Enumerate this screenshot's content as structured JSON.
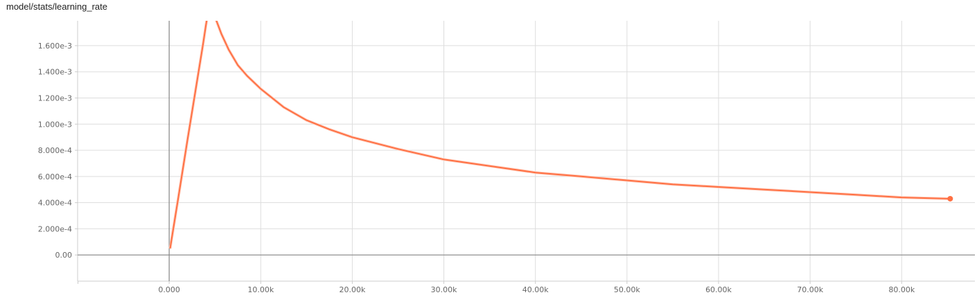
{
  "title": "model/stats/learning_rate",
  "colors": {
    "line": "#ff7043",
    "line_faint": "#ffccbc",
    "grid": "#dddddd",
    "axis": "#888888",
    "tick_text": "#666666"
  },
  "toolbar": {
    "icons": [
      "expand-icon",
      "log-scale-icon",
      "fit-domain-icon"
    ]
  },
  "chart_data": {
    "type": "line",
    "title": "model/stats/learning_rate",
    "xlabel": "",
    "ylabel": "",
    "xlim": [
      -10000,
      88000
    ],
    "ylim": [
      -0.0002,
      0.00179
    ],
    "grid": true,
    "x_ticks": [
      0,
      10000,
      20000,
      30000,
      40000,
      50000,
      60000,
      70000,
      80000
    ],
    "x_tick_labels": [
      "0.000",
      "10.00k",
      "20.00k",
      "30.00k",
      "40.00k",
      "50.00k",
      "60.00k",
      "70.00k",
      "80.00k"
    ],
    "y_ticks": [
      0,
      0.0002,
      0.0004,
      0.0006,
      0.0008,
      0.001,
      0.0012,
      0.0014,
      0.0016
    ],
    "y_tick_labels": [
      "0.00",
      "2.000e-4",
      "4.000e-4",
      "6.000e-4",
      "8.000e-4",
      "1.000e-3",
      "1.200e-3",
      "1.400e-3",
      "1.600e-3"
    ],
    "series": [
      {
        "x": [
          100,
          1000,
          2000,
          3000,
          3700,
          4000,
          4300,
          5000,
          5700,
          6500,
          7500,
          8500,
          10000,
          12500,
          15000,
          17500,
          20000,
          25000,
          30000,
          35000,
          40000,
          45000,
          50000,
          55000,
          60000,
          65000,
          70000,
          75000,
          80000,
          85300
        ],
        "y": [
          5e-05,
          0.00044,
          0.00088,
          0.00131,
          0.00161,
          0.00175,
          0.00188,
          0.00182,
          0.00169,
          0.00157,
          0.00145,
          0.00137,
          0.00127,
          0.00113,
          0.00103,
          0.00096,
          0.0009,
          0.00081,
          0.00073,
          0.00068,
          0.00063,
          0.0006,
          0.00057,
          0.00054,
          0.00052,
          0.0005,
          0.00048,
          0.00046,
          0.00044,
          0.00043
        ],
        "last_point": [
          85300,
          0.00043
        ]
      }
    ]
  }
}
